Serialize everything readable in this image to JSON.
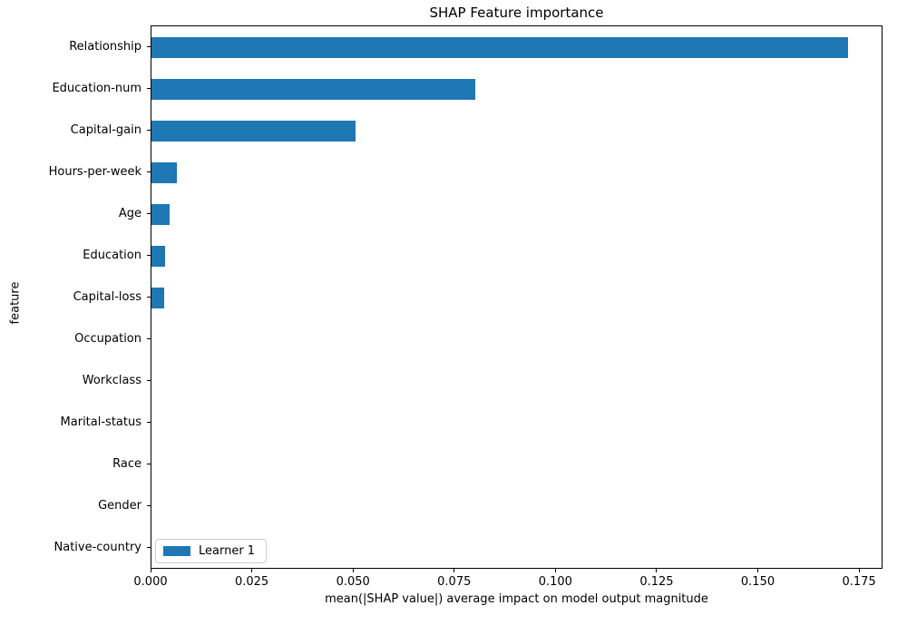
{
  "chart_data": {
    "type": "bar",
    "orientation": "horizontal",
    "title": "SHAP Feature importance",
    "xlabel": "mean(|SHAP value|) average impact on model output magnitude",
    "ylabel": "feature",
    "categories": [
      "Relationship",
      "Education-num",
      "Capital-gain",
      "Hours-per-week",
      "Age",
      "Education",
      "Capital-loss",
      "Occupation",
      "Workclass",
      "Marital-status",
      "Race",
      "Gender",
      "Native-country"
    ],
    "values": [
      0.172,
      0.08,
      0.0505,
      0.0062,
      0.0045,
      0.0034,
      0.0031,
      0.0,
      0.0,
      0.0,
      0.0,
      0.0,
      0.0
    ],
    "series": [
      {
        "name": "Learner 1",
        "values": [
          0.172,
          0.08,
          0.0505,
          0.0062,
          0.0045,
          0.0034,
          0.0031,
          0.0,
          0.0,
          0.0,
          0.0,
          0.0,
          0.0
        ]
      }
    ],
    "xlim": [
      0,
      0.1808
    ],
    "xticks": [
      0,
      0.025,
      0.05,
      0.075,
      0.1,
      0.125,
      0.15,
      0.175
    ],
    "xtick_labels": [
      "0.000",
      "0.025",
      "0.050",
      "0.075",
      "0.100",
      "0.125",
      "0.150",
      "0.175"
    ],
    "grid": false,
    "bar_color": "#1f77b4",
    "legend": {
      "position": "lower left",
      "entries": [
        "Learner 1"
      ],
      "swatch_color": "#1f77b4"
    }
  }
}
